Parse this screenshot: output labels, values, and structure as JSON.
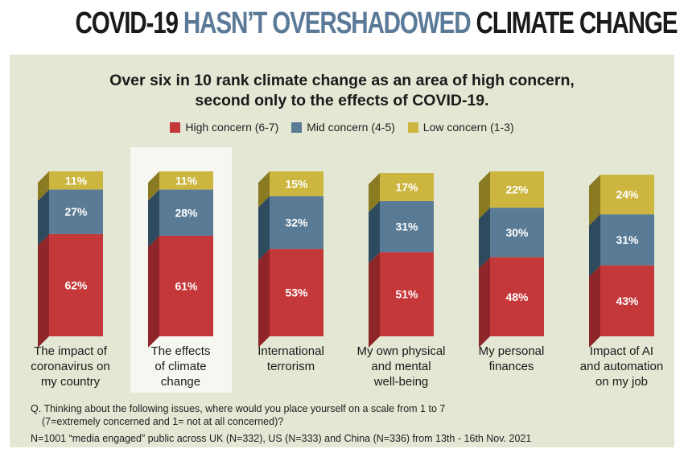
{
  "header": {
    "title_part1": "COVID-19",
    "title_highlight": "HASN’T OVERSHADOWED",
    "title_part2": "CLIMATE CHANGE"
  },
  "chart_data": {
    "type": "bar",
    "stacked": true,
    "title": "Over six in 10 rank climate change as an area of high concern,",
    "subtitle": "second only to the effects of COVID-19.",
    "categories": [
      [
        "The impact of",
        "coronavirus on",
        "my country"
      ],
      [
        "The effects",
        "of climate",
        "change"
      ],
      [
        "International",
        "terrorism"
      ],
      [
        "My own physical",
        "and mental",
        "well-being"
      ],
      [
        "My personal",
        "finances"
      ],
      [
        "Impact of AI",
        "and automation",
        "on my job"
      ]
    ],
    "series": [
      {
        "name": "High concern (6-7)",
        "color": "#c5383a",
        "side_color": "#8e2529",
        "values": [
          62,
          61,
          53,
          51,
          48,
          43
        ]
      },
      {
        "name": "Mid concern (4-5)",
        "color": "#5a7b95",
        "side_color": "#2d4a5f",
        "values": [
          27,
          28,
          32,
          31,
          30,
          31
        ]
      },
      {
        "name": "Low concern (1-3)",
        "color": "#ccb63f",
        "side_color": "#8a7a22",
        "values": [
          11,
          11,
          15,
          17,
          22,
          24
        ]
      }
    ],
    "value_suffix": "%",
    "highlighted_category_index": 1,
    "legend_position": "top"
  },
  "footnote": {
    "question_line1": "Q. Thinking about the following issues, where would you place yourself on a scale from 1 to 7",
    "question_line2": "(7=extremely concerned and 1= not at all concerned)?",
    "sample": "N=1001 “media engaged” public across UK (N=332), US (N=333) and China (N=336) from 13th - 16th Nov. 2021"
  }
}
